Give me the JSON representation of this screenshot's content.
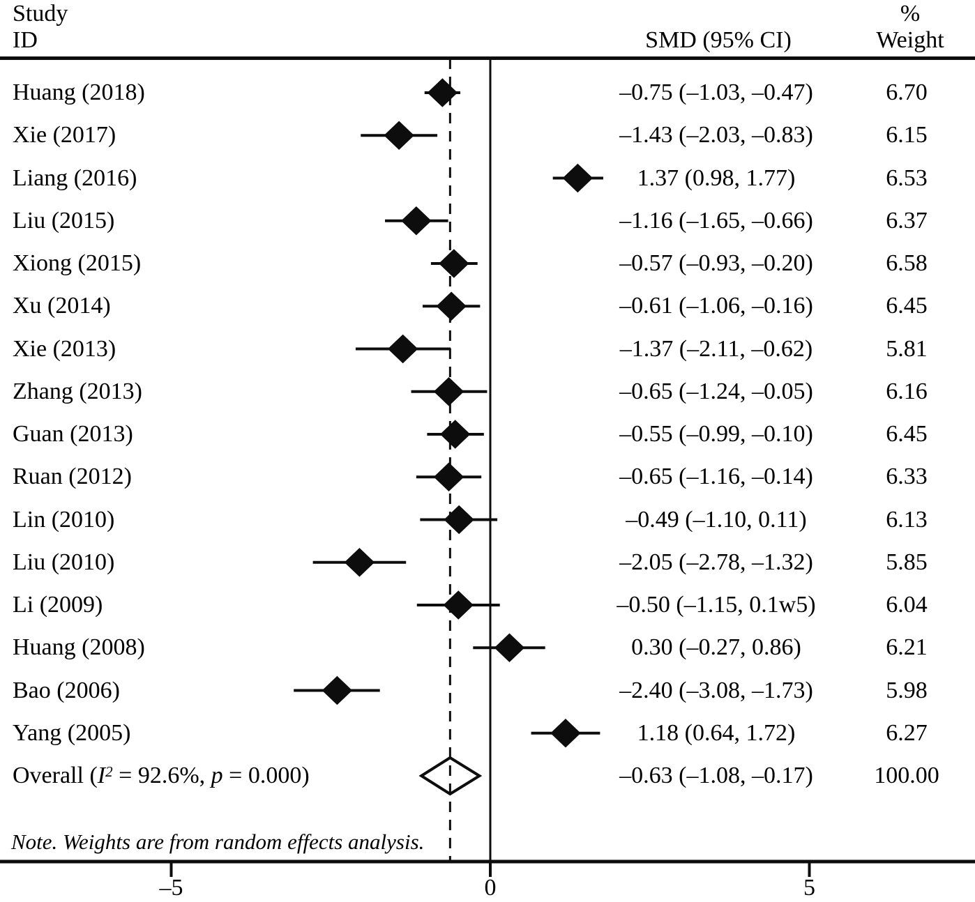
{
  "header": {
    "study_line1": "Study",
    "study_line2": "ID",
    "smd_col": "SMD (95% CI)",
    "weight_line1": "%",
    "weight_line2": "Weight"
  },
  "note": "Note. Weights are from random effects analysis.",
  "overall": {
    "label_pre": "Overall (",
    "label_i": "I",
    "label_i_sup": "2",
    "label_mid": " = 92.6%, ",
    "label_p": "p",
    "label_post": " = 0.000)",
    "smd_label": "–0.63 (–1.08, –0.17)",
    "weight_label": "100.00"
  },
  "chart_data": {
    "type": "forest",
    "title": "",
    "xlabel": "SMD",
    "effect_measure": "SMD (95% CI)",
    "x_axis": {
      "ticks": [
        {
          "value": -5,
          "label": "–5"
        },
        {
          "value": 0,
          "label": "0"
        },
        {
          "value": 5,
          "label": "5"
        }
      ],
      "zero_line": 0,
      "dashed_line_at": -0.63
    },
    "heterogeneity": {
      "i_squared": "92.6%",
      "p": "0.000"
    },
    "studies": [
      {
        "id": "Huang (2018)",
        "smd": -0.75,
        "ci_low": -1.03,
        "ci_high": -0.47,
        "weight": 6.7,
        "smd_label": "–0.75 (–1.03, –0.47)",
        "weight_label": "6.70"
      },
      {
        "id": "Xie (2017)",
        "smd": -1.43,
        "ci_low": -2.03,
        "ci_high": -0.83,
        "weight": 6.15,
        "smd_label": "–1.43 (–2.03, –0.83)",
        "weight_label": "6.15"
      },
      {
        "id": "Liang (2016)",
        "smd": 1.37,
        "ci_low": 0.98,
        "ci_high": 1.77,
        "weight": 6.53,
        "smd_label": "1.37 (0.98, 1.77)",
        "weight_label": "6.53"
      },
      {
        "id": "Liu (2015)",
        "smd": -1.16,
        "ci_low": -1.65,
        "ci_high": -0.66,
        "weight": 6.37,
        "smd_label": "–1.16 (–1.65, –0.66)",
        "weight_label": "6.37"
      },
      {
        "id": "Xiong (2015)",
        "smd": -0.57,
        "ci_low": -0.93,
        "ci_high": -0.2,
        "weight": 6.58,
        "smd_label": "–0.57 (–0.93, –0.20)",
        "weight_label": "6.58"
      },
      {
        "id": "Xu (2014)",
        "smd": -0.61,
        "ci_low": -1.06,
        "ci_high": -0.16,
        "weight": 6.45,
        "smd_label": "–0.61 (–1.06, –0.16)",
        "weight_label": "6.45"
      },
      {
        "id": "Xie (2013)",
        "smd": -1.37,
        "ci_low": -2.11,
        "ci_high": -0.62,
        "weight": 5.81,
        "smd_label": "–1.37 (–2.11, –0.62)",
        "weight_label": "5.81"
      },
      {
        "id": "Zhang (2013)",
        "smd": -0.65,
        "ci_low": -1.24,
        "ci_high": -0.05,
        "weight": 6.16,
        "smd_label": "–0.65 (–1.24, –0.05)",
        "weight_label": "6.16"
      },
      {
        "id": "Guan (2013)",
        "smd": -0.55,
        "ci_low": -0.99,
        "ci_high": -0.1,
        "weight": 6.45,
        "smd_label": "–0.55 (–0.99, –0.10)",
        "weight_label": "6.45"
      },
      {
        "id": "Ruan (2012)",
        "smd": -0.65,
        "ci_low": -1.16,
        "ci_high": -0.14,
        "weight": 6.33,
        "smd_label": "–0.65 (–1.16, –0.14)",
        "weight_label": "6.33"
      },
      {
        "id": "Lin (2010)",
        "smd": -0.49,
        "ci_low": -1.1,
        "ci_high": 0.11,
        "weight": 6.13,
        "smd_label": "–0.49 (–1.10, 0.11)",
        "weight_label": "6.13"
      },
      {
        "id": "Liu (2010)",
        "smd": -2.05,
        "ci_low": -2.78,
        "ci_high": -1.32,
        "weight": 5.85,
        "smd_label": "–2.05 (–2.78, –1.32)",
        "weight_label": "5.85"
      },
      {
        "id": "Li (2009)",
        "smd": -0.5,
        "ci_low": -1.15,
        "ci_high": 0.15,
        "weight": 6.04,
        "smd_label": "–0.50 (–1.15, 0.1w5)",
        "weight_label": "6.04"
      },
      {
        "id": "Huang (2008)",
        "smd": 0.3,
        "ci_low": -0.27,
        "ci_high": 0.86,
        "weight": 6.21,
        "smd_label": "0.30 (–0.27, 0.86)",
        "weight_label": "6.21"
      },
      {
        "id": "Bao (2006)",
        "smd": -2.4,
        "ci_low": -3.08,
        "ci_high": -1.73,
        "weight": 5.98,
        "smd_label": "–2.40 (–3.08, –1.73)",
        "weight_label": "5.98"
      },
      {
        "id": "Yang (2005)",
        "smd": 1.18,
        "ci_low": 0.64,
        "ci_high": 1.72,
        "weight": 6.27,
        "smd_label": "1.18 (0.64, 1.72)",
        "weight_label": "6.27"
      }
    ],
    "overall": {
      "smd": -0.63,
      "ci_low": -1.08,
      "ci_high": -0.17,
      "weight": 100.0
    }
  }
}
